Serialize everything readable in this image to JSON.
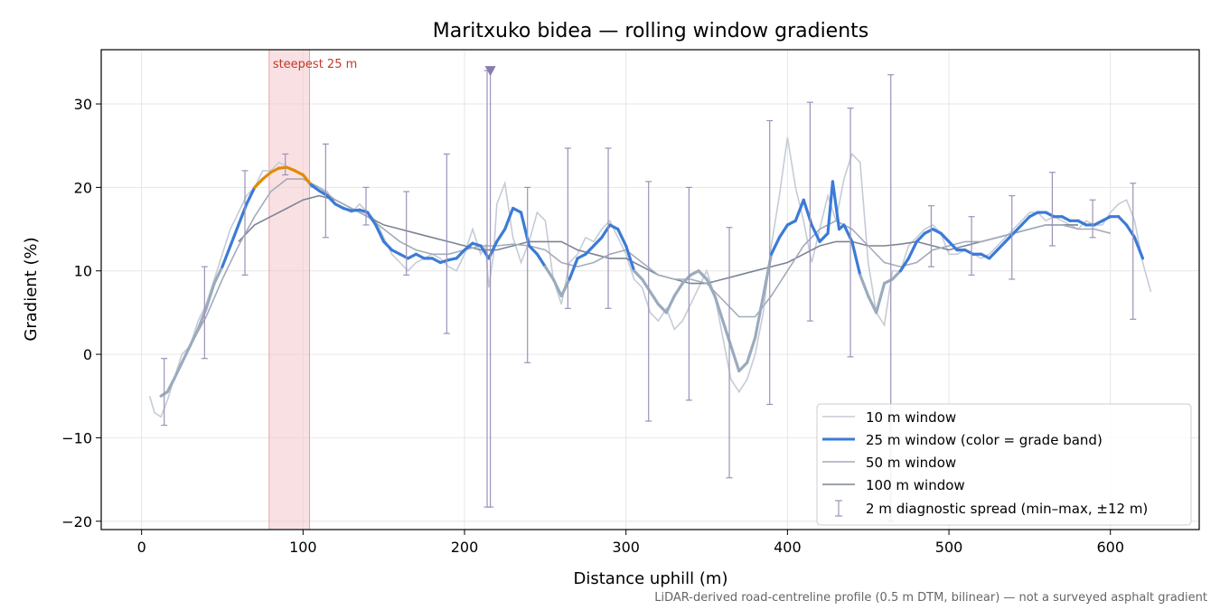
{
  "chart_data": {
    "type": "line",
    "title": "Maritxuko bidea — rolling window gradients",
    "xlabel": "Distance uphill (m)",
    "ylabel": "Gradient (%)",
    "xlim": [
      -25,
      655
    ],
    "ylim": [
      -21,
      36.5
    ],
    "xticks": [
      0,
      100,
      200,
      300,
      400,
      500,
      600
    ],
    "yticks": [
      -20,
      -10,
      0,
      10,
      20,
      30
    ],
    "grid": true,
    "legend_position": "lower-right",
    "footnote": "LiDAR-derived road-centreline profile (0.5 m DTM, bilinear) — not a surveyed asphalt gradient",
    "highlight": {
      "x0": 79,
      "x1": 104,
      "label": "steepest 25 m",
      "color": "#f4c9cc"
    },
    "marker": {
      "x": 216,
      "y": 34,
      "color": "#8a7bb0"
    },
    "colors": {
      "w10": "#c5ccd6",
      "w25_low": "#9aabbd",
      "w25_mid": "#3b7bd6",
      "w25_high": "#e38a00",
      "w50": "#a3abba",
      "w100": "#7b8494",
      "spread": "#9c92b8"
    },
    "series": [
      {
        "name": "10 m window",
        "x": [
          5,
          8,
          12,
          16,
          20,
          25,
          30,
          35,
          40,
          45,
          50,
          55,
          60,
          65,
          70,
          75,
          80,
          85,
          90,
          95,
          100,
          105,
          110,
          115,
          120,
          125,
          130,
          135,
          140,
          145,
          150,
          155,
          160,
          165,
          170,
          175,
          180,
          185,
          190,
          195,
          200,
          205,
          210,
          213,
          215,
          218,
          220,
          225,
          230,
          235,
          240,
          245,
          250,
          255,
          260,
          265,
          270,
          275,
          280,
          285,
          290,
          295,
          300,
          305,
          310,
          315,
          320,
          325,
          330,
          335,
          340,
          345,
          350,
          355,
          360,
          365,
          370,
          375,
          380,
          385,
          390,
          395,
          400,
          405,
          410,
          415,
          420,
          425,
          430,
          435,
          440,
          445,
          450,
          455,
          460,
          465,
          470,
          475,
          480,
          485,
          490,
          495,
          500,
          505,
          510,
          515,
          520,
          525,
          530,
          535,
          540,
          545,
          550,
          555,
          560,
          565,
          570,
          575,
          580,
          585,
          590,
          595,
          600,
          605,
          610,
          615,
          620,
          625
        ],
        "y": [
          -5,
          -7,
          -7.5,
          -5.5,
          -3,
          0,
          1,
          4,
          6,
          9,
          12,
          15,
          17,
          19,
          20,
          22,
          22,
          23,
          22.5,
          22,
          21.5,
          20,
          20,
          19.5,
          18,
          17.5,
          17,
          18,
          17,
          16,
          14,
          12,
          11,
          10,
          11,
          11.5,
          12,
          11.5,
          10.5,
          10,
          12,
          15,
          12,
          13,
          8,
          12,
          18,
          20.5,
          14,
          11,
          13.5,
          17,
          16,
          9,
          6,
          11,
          12,
          14,
          13.5,
          15,
          16,
          14,
          12,
          9,
          8,
          5,
          4,
          5.5,
          3,
          4,
          6,
          8,
          10,
          7,
          2,
          -3,
          -4.5,
          -3,
          0,
          5,
          13,
          19,
          26,
          20,
          16,
          11,
          15,
          19,
          16,
          21,
          24,
          23,
          11,
          5,
          3.5,
          10,
          10,
          13,
          14,
          15,
          15.5,
          14.5,
          12,
          12,
          12.5,
          12,
          11.5,
          12,
          13,
          14,
          15,
          16,
          17,
          17,
          16,
          16.5,
          16,
          15.5,
          15,
          16,
          15.5,
          15.5,
          17,
          18,
          18.5,
          16,
          11,
          7.5
        ]
      },
      {
        "name": "25 m window (color = grade band)",
        "x": [
          12,
          16,
          20,
          25,
          30,
          35,
          40,
          45,
          50,
          55,
          60,
          65,
          70,
          75,
          80,
          85,
          90,
          95,
          100,
          105,
          110,
          115,
          120,
          125,
          130,
          135,
          140,
          145,
          150,
          155,
          160,
          165,
          170,
          175,
          180,
          185,
          190,
          195,
          200,
          205,
          210,
          215,
          220,
          225,
          230,
          235,
          240,
          245,
          250,
          255,
          260,
          265,
          270,
          275,
          280,
          285,
          290,
          295,
          300,
          305,
          310,
          315,
          320,
          325,
          330,
          335,
          340,
          345,
          350,
          355,
          360,
          365,
          370,
          375,
          380,
          385,
          390,
          395,
          400,
          405,
          410,
          415,
          420,
          425,
          428,
          432,
          435,
          440,
          445,
          450,
          455,
          460,
          465,
          470,
          475,
          480,
          485,
          490,
          495,
          500,
          505,
          510,
          515,
          520,
          525,
          530,
          535,
          540,
          545,
          550,
          555,
          560,
          565,
          570,
          575,
          580,
          585,
          590,
          595,
          600,
          605,
          610,
          615,
          620
        ],
        "y": [
          -5,
          -4.5,
          -3,
          -1,
          1,
          3,
          5.5,
          8.5,
          10.5,
          13,
          15.5,
          18,
          20,
          21,
          21.8,
          22.3,
          22.4,
          22,
          21.5,
          20.3,
          19.6,
          19,
          18,
          17.5,
          17.2,
          17.3,
          17,
          15.5,
          13.5,
          12.5,
          12,
          11.5,
          12,
          11.5,
          11.5,
          11,
          11.3,
          11.5,
          12.5,
          13.3,
          13,
          11.5,
          13.5,
          15,
          17.5,
          17,
          13,
          12,
          10.5,
          9,
          7,
          9,
          11.5,
          12,
          13,
          14,
          15.5,
          15,
          13,
          10,
          9,
          7.5,
          6,
          5,
          7,
          8.5,
          9.5,
          10,
          9,
          7,
          4,
          1,
          -2,
          -1,
          2,
          7,
          12,
          14,
          15.5,
          16,
          18.5,
          15.5,
          13.5,
          14.5,
          20.7,
          15,
          15.5,
          13.5,
          9.5,
          7,
          5,
          8.5,
          9,
          10,
          11.5,
          13.5,
          14.5,
          15,
          14.5,
          13.5,
          12.5,
          12.5,
          12,
          12,
          11.5,
          12.5,
          13.5,
          14.5,
          15.5,
          16.5,
          17,
          17,
          16.5,
          16.5,
          16,
          16,
          15.5,
          15.5,
          16,
          16.5,
          16.5,
          15.5,
          14,
          11.5
        ]
      },
      {
        "name": "50 m window",
        "x": [
          30,
          40,
          50,
          60,
          70,
          80,
          90,
          100,
          110,
          120,
          130,
          140,
          150,
          160,
          170,
          180,
          190,
          200,
          210,
          220,
          230,
          240,
          250,
          260,
          270,
          280,
          290,
          300,
          310,
          320,
          330,
          340,
          350,
          360,
          370,
          380,
          390,
          400,
          410,
          420,
          430,
          440,
          450,
          460,
          470,
          480,
          490,
          500,
          510,
          520,
          530,
          540,
          550,
          560,
          570,
          580,
          590,
          600
        ],
        "y": [
          1,
          4.5,
          9,
          13,
          16.5,
          19.5,
          21,
          21,
          20,
          18.5,
          17.5,
          16.5,
          15,
          13.5,
          12.5,
          12,
          12,
          12.5,
          13,
          13,
          13.2,
          13,
          12.5,
          11,
          10.5,
          11,
          12,
          12.5,
          11,
          9.5,
          9,
          9,
          8.5,
          6.5,
          4.5,
          4.5,
          7,
          10,
          13,
          15,
          16,
          15,
          13,
          11,
          10.5,
          11,
          12.5,
          13,
          13.5,
          13.5,
          14,
          14.5,
          15,
          15.5,
          15.5,
          15,
          15,
          14.5
        ]
      },
      {
        "name": "100 m window",
        "x": [
          60,
          70,
          80,
          90,
          100,
          110,
          120,
          130,
          140,
          150,
          160,
          170,
          180,
          190,
          200,
          210,
          220,
          230,
          240,
          250,
          260,
          270,
          280,
          290,
          300,
          310,
          320,
          330,
          340,
          350,
          360,
          370,
          380,
          390,
          400,
          410,
          420,
          430,
          440,
          450,
          460,
          470,
          480,
          490,
          500,
          510,
          520,
          530,
          540,
          550,
          560,
          570,
          580
        ],
        "y": [
          13.5,
          15.5,
          16.5,
          17.5,
          18.5,
          19,
          18.5,
          17.5,
          16.5,
          15.5,
          15,
          14.5,
          14,
          13.5,
          13,
          12.5,
          12.5,
          13,
          13.5,
          13.5,
          13.5,
          12.5,
          12,
          11.5,
          11.5,
          10.5,
          9.5,
          9,
          8.5,
          8.5,
          9,
          9.5,
          10,
          10.5,
          11,
          12,
          13,
          13.5,
          13.5,
          13,
          13,
          13.2,
          13.5,
          13,
          12.5,
          13,
          13.5,
          14,
          14.5,
          15,
          15.5,
          15.5,
          15.5
        ]
      }
    ],
    "spread": {
      "name": "2 m diagnostic spread (min–max, ±12 m)",
      "items": [
        {
          "x": 14,
          "min": -8.5,
          "max": -0.5
        },
        {
          "x": 39,
          "min": -0.5,
          "max": 10.5
        },
        {
          "x": 64,
          "min": 9.5,
          "max": 22
        },
        {
          "x": 89,
          "min": 21.5,
          "max": 24
        },
        {
          "x": 114,
          "min": 14,
          "max": 25.2
        },
        {
          "x": 139,
          "min": 15.5,
          "max": 20
        },
        {
          "x": 164,
          "min": 9.5,
          "max": 19.5
        },
        {
          "x": 189,
          "min": 2.5,
          "max": 24
        },
        {
          "x": 214,
          "min": -18.3,
          "max": 34
        },
        {
          "x": 216,
          "min": -18.3,
          "max": 34
        },
        {
          "x": 239,
          "min": -1,
          "max": 20
        },
        {
          "x": 264,
          "min": 5.5,
          "max": 24.7
        },
        {
          "x": 289,
          "min": 5.5,
          "max": 24.7
        },
        {
          "x": 314,
          "min": -8,
          "max": 20.7
        },
        {
          "x": 339,
          "min": -5.5,
          "max": 20
        },
        {
          "x": 364,
          "min": -14.8,
          "max": 15.2
        },
        {
          "x": 389,
          "min": -6,
          "max": 28
        },
        {
          "x": 414,
          "min": 4,
          "max": 30.2
        },
        {
          "x": 439,
          "min": -0.3,
          "max": 29.5
        },
        {
          "x": 464,
          "min": -20,
          "max": 33.5
        },
        {
          "x": 489,
          "min": 10.5,
          "max": 17.8
        },
        {
          "x": 514,
          "min": 9.5,
          "max": 16.5
        },
        {
          "x": 539,
          "min": 9,
          "max": 19
        },
        {
          "x": 564,
          "min": 13,
          "max": 21.8
        },
        {
          "x": 589,
          "min": 14,
          "max": 18.5
        },
        {
          "x": 614,
          "min": 4.2,
          "max": 20.5
        }
      ]
    }
  }
}
